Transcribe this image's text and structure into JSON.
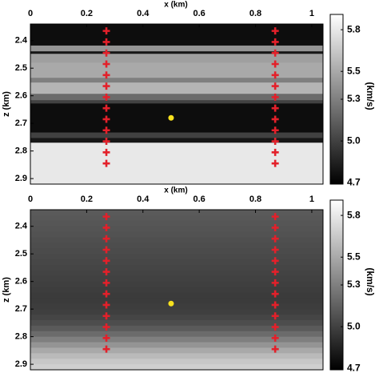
{
  "chart_data": [
    {
      "type": "heatmap",
      "xlabel": "x (km)",
      "ylabel": "z (km)",
      "colorbar_label": "(km/s)",
      "colormap": "gray",
      "xlim": [
        0,
        1.04
      ],
      "xticks": [
        0,
        0.2,
        0.4,
        0.6,
        0.8,
        1
      ],
      "ylim": [
        2.34,
        2.92
      ],
      "y_inverted": true,
      "yticks": [
        2.4,
        2.5,
        2.6,
        2.7,
        2.8,
        2.9
      ],
      "clim": [
        4.69,
        5.91
      ],
      "cticks": [
        4.7,
        {
          "value": 5,
          "label": "5.0"
        },
        5.3,
        5.5,
        5.8
      ],
      "layers": {
        "z": [
          2.34,
          2.418,
          2.439,
          2.448,
          2.48,
          2.535,
          2.552,
          2.593,
          2.616,
          2.628,
          2.733,
          2.753,
          2.77,
          2.92
        ],
        "values": [
          4.75,
          5.4,
          4.8,
          5.45,
          5.5,
          5.3,
          5.55,
          5.2,
          5.0,
          4.75,
          5.0,
          4.8,
          5.8
        ]
      },
      "series": [
        {
          "color": "#e3202a",
          "marker": "+",
          "x": [
            0.27,
            0.27,
            0.27,
            0.27,
            0.27,
            0.27,
            0.27,
            0.27,
            0.27,
            0.27,
            0.27,
            0.27,
            0.27,
            0.87,
            0.87,
            0.87,
            0.87,
            0.87,
            0.87,
            0.87,
            0.87,
            0.87,
            0.87,
            0.87,
            0.87,
            0.87
          ],
          "y": [
            2.365,
            2.405,
            2.445,
            2.485,
            2.525,
            2.565,
            2.605,
            2.645,
            2.685,
            2.725,
            2.765,
            2.805,
            2.845,
            2.365,
            2.405,
            2.445,
            2.485,
            2.525,
            2.565,
            2.605,
            2.645,
            2.685,
            2.725,
            2.765,
            2.805,
            2.845
          ]
        },
        {
          "color": "#f7e11e",
          "marker": "o",
          "x": [
            0.5
          ],
          "y": [
            2.68
          ]
        }
      ]
    },
    {
      "type": "heatmap",
      "xlabel": "x (km)",
      "ylabel": "z (km)",
      "colorbar_label": "(km/s)",
      "colormap": "gray",
      "xlim": [
        0,
        1.04
      ],
      "xticks": [
        0,
        0.2,
        0.4,
        0.6,
        0.8,
        1
      ],
      "ylim": [
        2.34,
        2.92
      ],
      "y_inverted": true,
      "yticks": [
        2.4,
        2.5,
        2.6,
        2.7,
        2.8,
        2.9
      ],
      "clim": [
        4.69,
        5.91
      ],
      "cticks": [
        4.7,
        {
          "value": 5,
          "label": "5.0"
        },
        5.3,
        5.5,
        5.8
      ],
      "layers": {
        "z": [
          2.34,
          2.36,
          2.38,
          2.4,
          2.42,
          2.44,
          2.46,
          2.48,
          2.5,
          2.52,
          2.54,
          2.56,
          2.58,
          2.6,
          2.62,
          2.64,
          2.66,
          2.68,
          2.7,
          2.72,
          2.74,
          2.76,
          2.78,
          2.8,
          2.82,
          2.84,
          2.86,
          2.88,
          2.9,
          2.92
        ],
        "values": [
          5.12,
          5.11,
          5.1,
          5.09,
          5.08,
          5.07,
          5.06,
          5.05,
          5.04,
          5.03,
          5.02,
          5.01,
          5.0,
          4.99,
          4.98,
          4.97,
          4.97,
          4.98,
          4.99,
          5.02,
          5.06,
          5.12,
          5.2,
          5.3,
          5.4,
          5.5,
          5.58,
          5.64,
          5.68
        ]
      },
      "series": [
        {
          "color": "#e3202a",
          "marker": "+",
          "x": [
            0.27,
            0.27,
            0.27,
            0.27,
            0.27,
            0.27,
            0.27,
            0.27,
            0.27,
            0.27,
            0.27,
            0.27,
            0.27,
            0.87,
            0.87,
            0.87,
            0.87,
            0.87,
            0.87,
            0.87,
            0.87,
            0.87,
            0.87,
            0.87,
            0.87,
            0.87
          ],
          "y": [
            2.365,
            2.405,
            2.445,
            2.485,
            2.525,
            2.565,
            2.605,
            2.645,
            2.685,
            2.725,
            2.765,
            2.805,
            2.845,
            2.365,
            2.405,
            2.445,
            2.485,
            2.525,
            2.565,
            2.605,
            2.645,
            2.685,
            2.725,
            2.765,
            2.805,
            2.845
          ]
        },
        {
          "color": "#f7e11e",
          "marker": "o",
          "x": [
            0.5
          ],
          "y": [
            2.68
          ]
        }
      ]
    }
  ]
}
